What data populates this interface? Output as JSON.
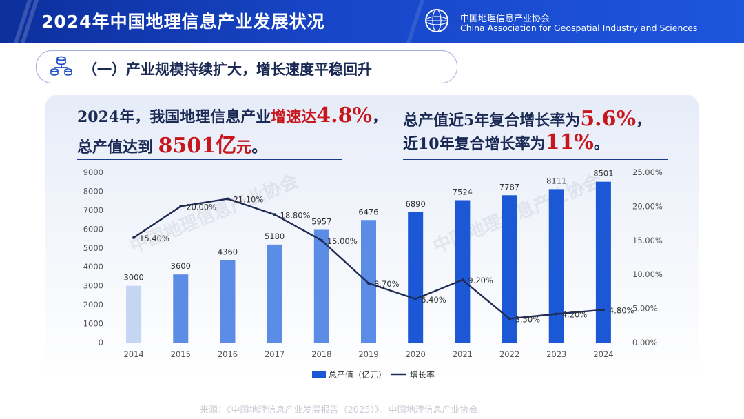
{
  "header": {
    "title": "2024年中国地理信息产业发展状况",
    "org_cn": "中国地理信息产业协会",
    "org_en": "China Association for Geospatial Industry and Sciences"
  },
  "section": {
    "title": "（一）产业规模持续扩大，增长速度平稳回升"
  },
  "headline_left": {
    "line1_prefix": "2024年，我国地理信息产业",
    "line1_red": "增速达",
    "line1_big": "4.8%",
    "line1_suffix": "，",
    "line2_prefix": "总产值达到 ",
    "line2_big": "8501亿",
    "line2_red": "元",
    "line2_suffix": "。"
  },
  "headline_right": {
    "line1_prefix": "总产值近5年复合增长率为",
    "line1_big": "5.6%",
    "line1_suffix": "，",
    "line2_prefix": "近10年复合增长率为",
    "line2_big": "11%",
    "line2_suffix": "。"
  },
  "watermark": "中国地理信息产业协会",
  "source": "来源：《中国地理信息产业发展报告（2025）》，中国地理信息产业协会",
  "colors": {
    "bar_light": "#c5d6f5",
    "bar_mid": "#5b8de6",
    "bar_dark": "#1c58d6",
    "line": "#1e2c55",
    "accent_red": "#c8161d"
  },
  "chart_data": {
    "type": "bar",
    "categories": [
      "2014",
      "2015",
      "2016",
      "2017",
      "2018",
      "2019",
      "2020",
      "2021",
      "2022",
      "2023",
      "2024"
    ],
    "series": [
      {
        "name": "总产值（亿元）",
        "kind": "bar",
        "axis": "left",
        "values": [
          3000,
          3600,
          4360,
          5180,
          5957,
          6476,
          6890,
          7524,
          7787,
          8111,
          8501
        ],
        "labels": [
          "3000",
          "3600",
          "4360",
          "5180",
          "5957",
          "6476",
          "6890",
          "7524",
          "7787",
          "8111",
          "8501"
        ]
      },
      {
        "name": "增长率",
        "kind": "line",
        "axis": "right",
        "values": [
          15.4,
          20.0,
          21.1,
          18.8,
          15.0,
          8.7,
          6.4,
          9.2,
          3.5,
          4.2,
          4.8
        ],
        "labels": [
          "15.40%",
          "20.00%",
          "21.10%",
          "18.80%",
          "15.00%",
          "8.70%",
          "6.40%",
          "9.20%",
          "3.50%",
          "4.20%",
          "4.80%"
        ]
      }
    ],
    "y_left": {
      "range": [
        0,
        9000
      ],
      "ticks": [
        "0",
        "1000",
        "2000",
        "3000",
        "4000",
        "5000",
        "6000",
        "7000",
        "8000",
        "9000"
      ]
    },
    "y_right": {
      "range": [
        0,
        25
      ],
      "ticks": [
        "0.00%",
        "5.00%",
        "10.00%",
        "15.00%",
        "20.00%",
        "25.00%"
      ]
    },
    "legend": {
      "position": "bottom",
      "items": [
        "总产值（亿元）",
        "增长率"
      ]
    },
    "grid": false
  }
}
